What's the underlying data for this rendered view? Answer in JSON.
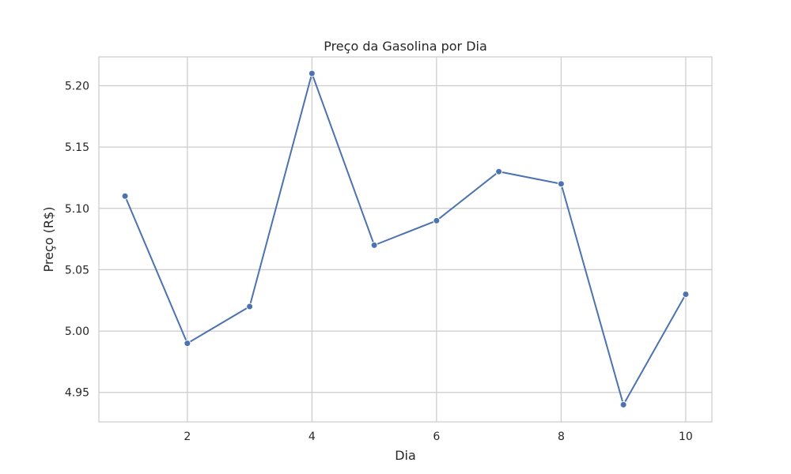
{
  "chart_data": {
    "type": "line",
    "title": "Preço da Gasolina por Dia",
    "xlabel": "Dia",
    "ylabel": "Preço (R$)",
    "x": [
      1,
      2,
      3,
      4,
      5,
      6,
      7,
      8,
      9,
      10
    ],
    "series": [
      {
        "values": [
          5.11,
          4.99,
          5.02,
          5.21,
          5.07,
          5.09,
          5.13,
          5.12,
          4.94,
          5.03
        ],
        "color": "#4c72b0",
        "marker": "circle"
      }
    ],
    "xticks": [
      2,
      4,
      6,
      8,
      10
    ],
    "yticks": [
      4.95,
      5.0,
      5.05,
      5.1,
      5.15,
      5.2
    ],
    "ytick_labels": [
      "4.95",
      "5.00",
      "5.05",
      "5.10",
      "5.15",
      "5.20"
    ],
    "xlim": [
      0.58,
      10.42
    ],
    "ylim": [
      4.926,
      5.2235
    ],
    "grid": true
  }
}
